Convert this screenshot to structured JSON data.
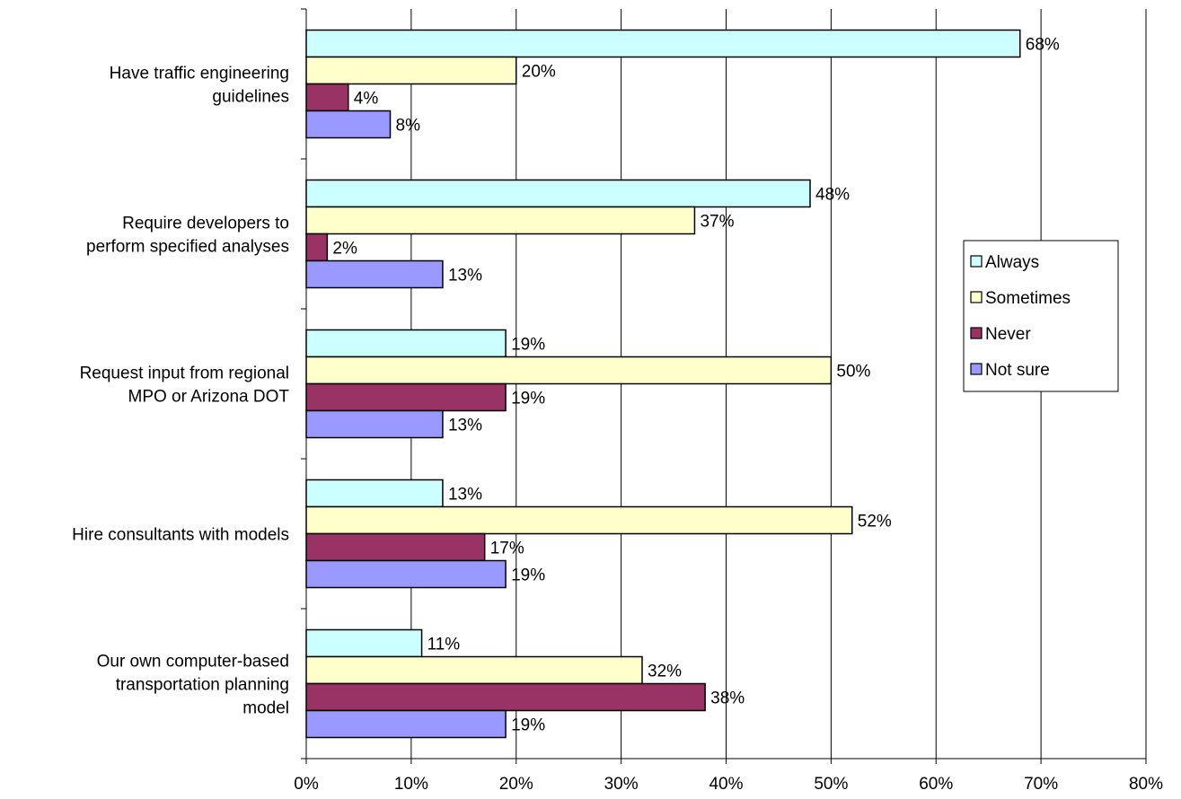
{
  "chart_data": {
    "type": "bar",
    "orientation": "horizontal",
    "title": "",
    "xlabel": "",
    "ylabel": "",
    "xlim": [
      0,
      80
    ],
    "x_tick_labels": [
      "0%",
      "10%",
      "20%",
      "30%",
      "40%",
      "50%",
      "60%",
      "70%",
      "80%"
    ],
    "grid": "vertical",
    "legend_position": "right",
    "categories": [
      [
        "Have traffic engineering",
        "guidelines"
      ],
      [
        "Require developers to",
        "perform specified analyses"
      ],
      [
        "Request input from regional",
        "MPO or Arizona DOT"
      ],
      [
        "Hire consultants with models"
      ],
      [
        "Our own computer-based",
        "transportation planning",
        "model"
      ]
    ],
    "series": [
      {
        "name": "Always",
        "color": "#CCFFFF",
        "values": [
          68,
          48,
          19,
          13,
          11
        ],
        "labels": [
          "68%",
          "48%",
          "19%",
          "13%",
          "11%"
        ]
      },
      {
        "name": "Sometimes",
        "color": "#FFFFCC",
        "values": [
          20,
          37,
          50,
          52,
          32
        ],
        "labels": [
          "20%",
          "37%",
          "50%",
          "52%",
          "32%"
        ]
      },
      {
        "name": "Never",
        "color": "#993366",
        "values": [
          4,
          2,
          19,
          17,
          38
        ],
        "labels": [
          "4%",
          "2%",
          "19%",
          "17%",
          "38%"
        ]
      },
      {
        "name": "Not sure",
        "color": "#9999FF",
        "values": [
          8,
          13,
          13,
          19,
          19
        ],
        "labels": [
          "8%",
          "13%",
          "13%",
          "19%",
          "19%"
        ]
      }
    ]
  }
}
